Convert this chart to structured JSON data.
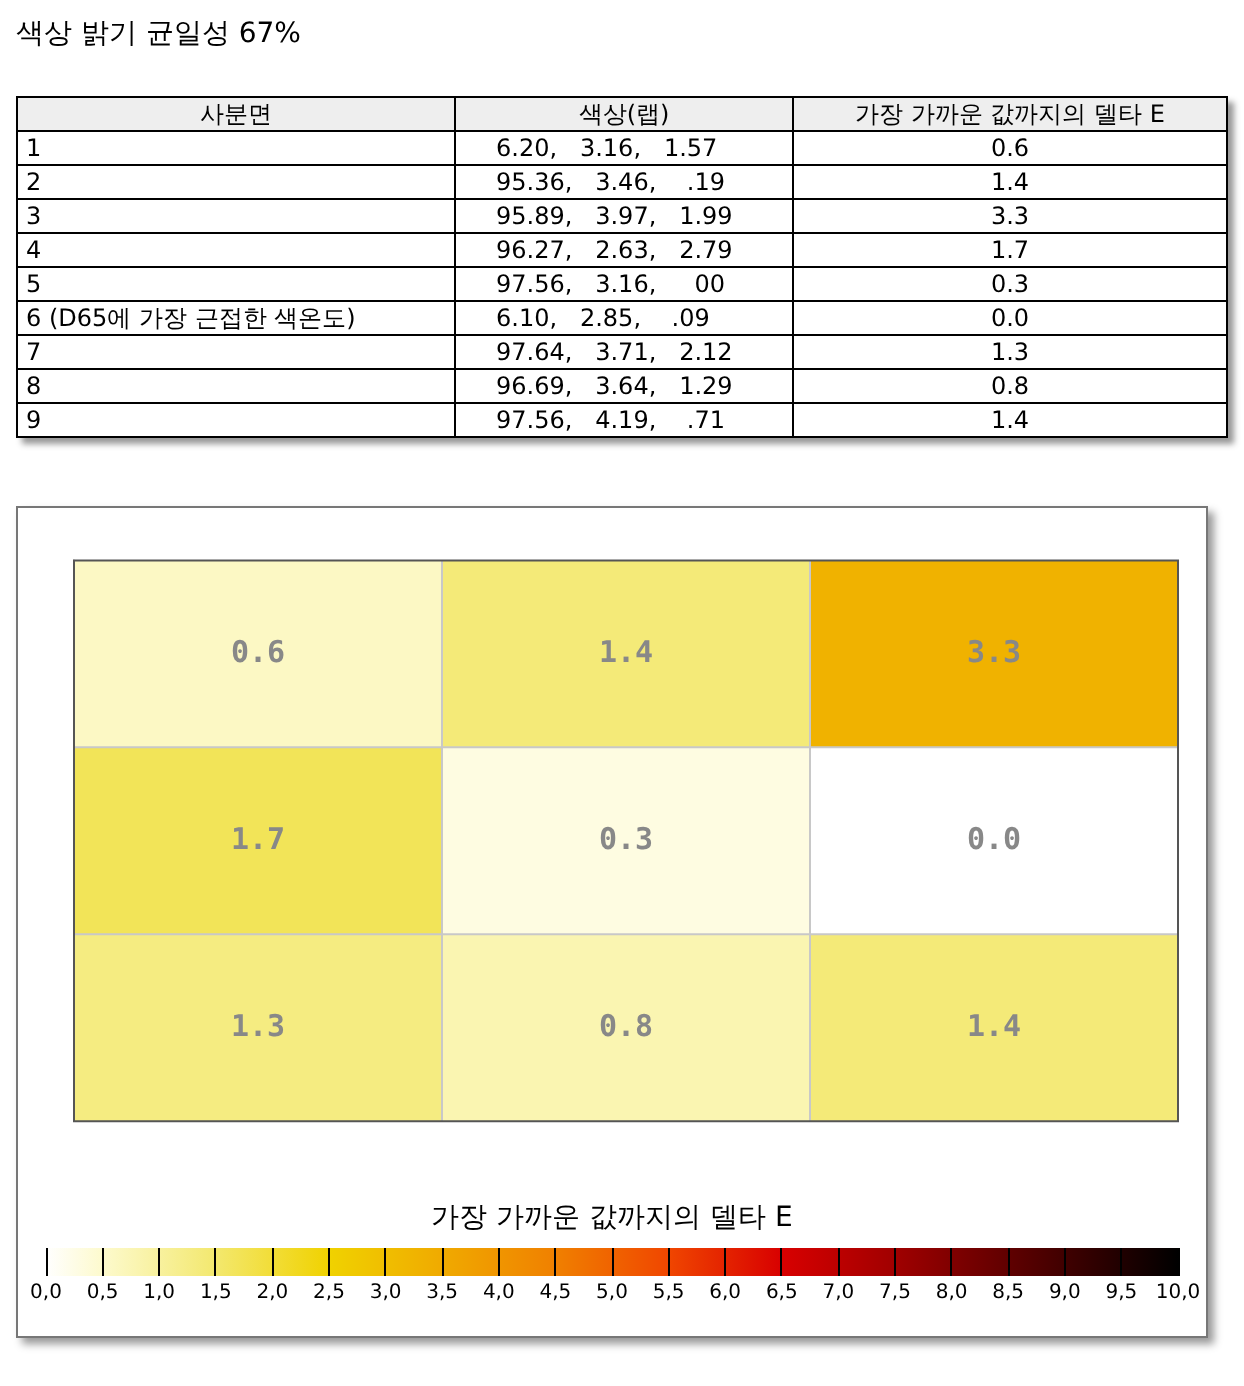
{
  "chart_data": [
    {
      "type": "other",
      "title": "색상 밝기 균일성 67%",
      "categories": [
        "사분면",
        "색상(랩)",
        "가장 가까운 값까지의 델타 E"
      ],
      "y_categories": [
        "1",
        "2",
        "3",
        "4",
        "5",
        "6 (D65에 가장 근접한 색온도)",
        "7",
        "8",
        "9"
      ],
      "cell_labels": [
        [
          "6.20,   3.16,   1.57",
          "0.6"
        ],
        [
          "95.36,   3.46,    .19",
          "1.4"
        ],
        [
          "95.89,   3.97,   1.99",
          "3.3"
        ],
        [
          "96.27,   2.63,   2.79",
          "1.7"
        ],
        [
          "97.56,   3.16,     00",
          "0.3"
        ],
        [
          "6.10,   2.85,    .09",
          "0.0"
        ],
        [
          "97.64,   3.71,   2.12",
          "1.3"
        ],
        [
          "96.69,   3.64,   1.29",
          "0.8"
        ],
        [
          "97.56,   4.19,    .71",
          "1.4"
        ]
      ]
    },
    {
      "type": "heatmap",
      "categories": [
        null,
        null,
        null
      ],
      "y_categories": [
        null,
        null,
        null
      ],
      "cells": [
        [
          0.6,
          1.4,
          3.3
        ],
        [
          1.7,
          0.3,
          0.0
        ],
        [
          1.3,
          0.8,
          1.4
        ]
      ],
      "cell_labels": [
        [
          "0.6",
          "1.4",
          "3.3"
        ],
        [
          "1.7",
          "0.3",
          "0.0"
        ],
        [
          "1.3",
          "0.8",
          "1.4"
        ]
      ],
      "grid": true,
      "clabel": "가장 가까운 값까지의 델타 E",
      "clim": [
        0,
        10
      ],
      "cticks": [
        {
          "value": 0,
          "label": "0,0"
        },
        {
          "value": 0.5,
          "label": "0,5"
        },
        {
          "value": 1,
          "label": "1,0"
        },
        {
          "value": 1.5,
          "label": "1,5"
        },
        {
          "value": 2,
          "label": "2,0"
        },
        {
          "value": 2.5,
          "label": "2,5"
        },
        {
          "value": 3,
          "label": "3,0"
        },
        {
          "value": 3.5,
          "label": "3,5"
        },
        {
          "value": 4,
          "label": "4,0"
        },
        {
          "value": 4.5,
          "label": "4,5"
        },
        {
          "value": 5,
          "label": "5,0"
        },
        {
          "value": 5.5,
          "label": "5,5"
        },
        {
          "value": 6,
          "label": "6,0"
        },
        {
          "value": 6.5,
          "label": "6,5"
        },
        {
          "value": 7,
          "label": "7,0"
        },
        {
          "value": 7.5,
          "label": "7,5"
        },
        {
          "value": 8,
          "label": "8,0"
        },
        {
          "value": 8.5,
          "label": "8,5"
        },
        {
          "value": 9,
          "label": "9,0"
        },
        {
          "value": 9.5,
          "label": "9,5"
        },
        {
          "value": 10,
          "label": "10,0"
        }
      ]
    }
  ]
}
